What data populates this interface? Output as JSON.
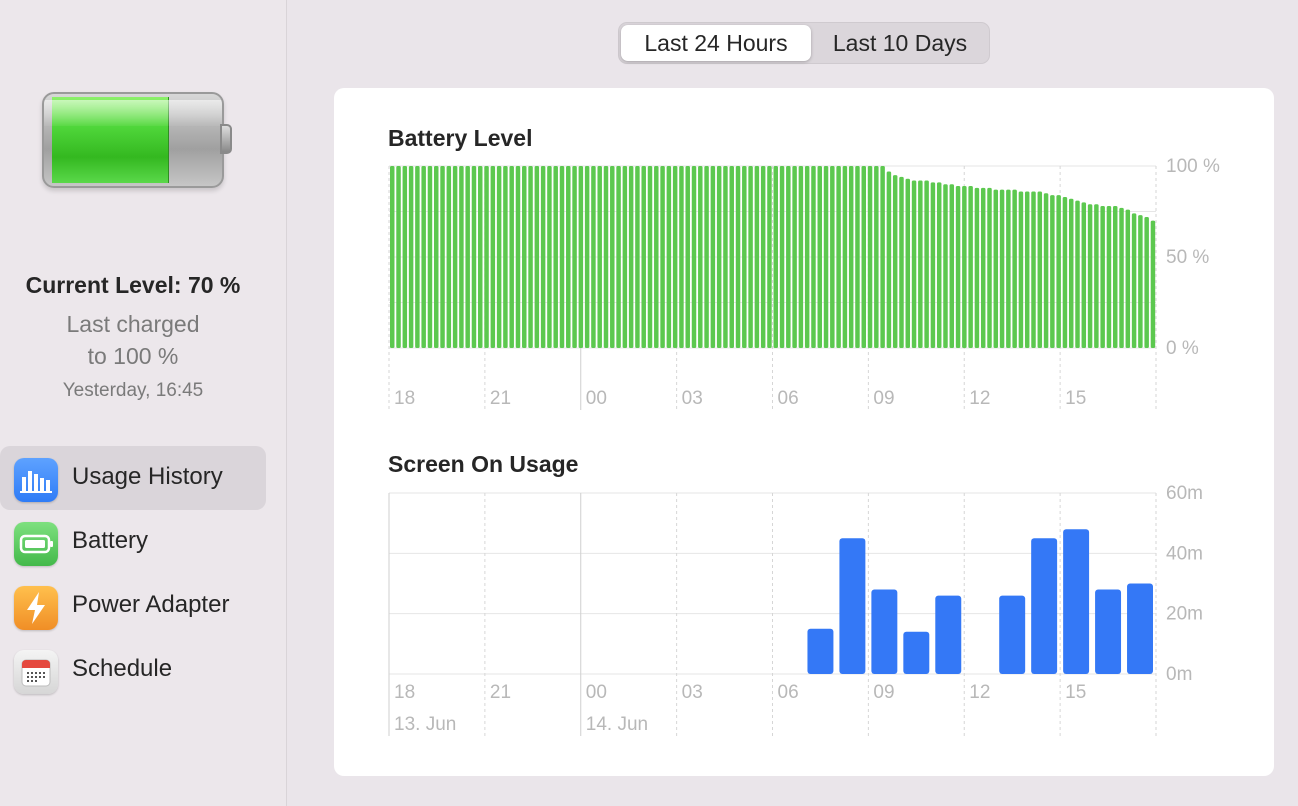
{
  "sidebar": {
    "current_level": "Current Level: 70 %",
    "last_charged_line1": "Last charged",
    "last_charged_line2": "to 100 %",
    "last_charged_time": "Yesterday, 16:45",
    "battery_icon_level_percent": 70,
    "nav": [
      {
        "label": "Usage History",
        "icon": "bar-chart-icon",
        "color": "#2f7cf6",
        "selected": true
      },
      {
        "label": "Battery",
        "icon": "battery-icon",
        "color": "#4cc658",
        "selected": false
      },
      {
        "label": "Power Adapter",
        "icon": "bolt-icon",
        "color": "#f4a23b",
        "selected": false
      },
      {
        "label": "Schedule",
        "icon": "calendar-icon",
        "color": "#e8e8e8",
        "selected": false
      }
    ]
  },
  "segmented": {
    "options": [
      "Last 24 Hours",
      "Last 10 Days"
    ],
    "selected": 0
  },
  "charts": {
    "battery_title": "Battery Level",
    "screen_title": "Screen On Usage"
  },
  "chart_data": [
    {
      "type": "bar",
      "title": "Battery Level",
      "x_ticks": [
        "18",
        "21",
        "00",
        "03",
        "06",
        "09",
        "12",
        "15"
      ],
      "y_ticks": [
        "100 %",
        "50 %",
        "0 %"
      ],
      "ylim": [
        0,
        100
      ],
      "bar_color": "#5cc84f",
      "values": [
        100,
        100,
        100,
        100,
        100,
        100,
        100,
        100,
        100,
        100,
        100,
        100,
        100,
        100,
        100,
        100,
        100,
        100,
        100,
        100,
        100,
        100,
        100,
        100,
        100,
        100,
        100,
        100,
        100,
        100,
        100,
        100,
        100,
        100,
        100,
        100,
        100,
        100,
        100,
        100,
        100,
        100,
        100,
        100,
        100,
        100,
        100,
        100,
        100,
        100,
        100,
        100,
        100,
        100,
        100,
        100,
        100,
        100,
        100,
        100,
        100,
        100,
        100,
        100,
        100,
        100,
        100,
        100,
        100,
        100,
        100,
        100,
        100,
        100,
        100,
        100,
        100,
        100,
        100,
        97,
        95,
        94,
        93,
        92,
        92,
        92,
        91,
        91,
        90,
        90,
        89,
        89,
        89,
        88,
        88,
        88,
        87,
        87,
        87,
        87,
        86,
        86,
        86,
        86,
        85,
        84,
        84,
        83,
        82,
        81,
        80,
        79,
        79,
        78,
        78,
        78,
        77,
        76,
        74,
        73,
        72,
        70
      ]
    },
    {
      "type": "bar",
      "title": "Screen On Usage",
      "x_ticks": [
        "18",
        "21",
        "00",
        "03",
        "06",
        "09",
        "12",
        "15"
      ],
      "date_labels": [
        "13. Jun",
        "14. Jun"
      ],
      "y_ticks": [
        "60m",
        "40m",
        "20m",
        "0m"
      ],
      "ylim": [
        0,
        60
      ],
      "unit": "minutes",
      "bar_color": "#3478f6",
      "hours": [
        "18",
        "19",
        "20",
        "21",
        "22",
        "23",
        "00",
        "01",
        "02",
        "03",
        "04",
        "05",
        "06",
        "07",
        "08",
        "09",
        "10",
        "11",
        "12",
        "13",
        "14",
        "15",
        "16",
        "17"
      ],
      "values": [
        0,
        0,
        0,
        0,
        0,
        0,
        0,
        0,
        0,
        0,
        0,
        0,
        0,
        15,
        45,
        28,
        14,
        26,
        0,
        26,
        45,
        48,
        28,
        30
      ]
    }
  ]
}
